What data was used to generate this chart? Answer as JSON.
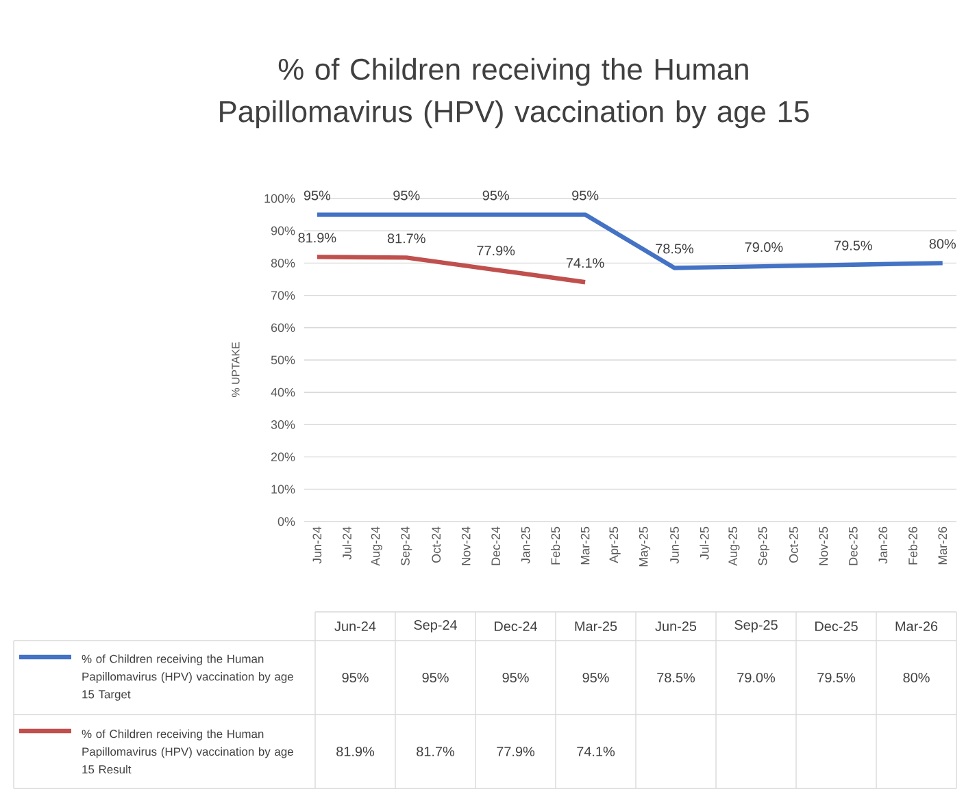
{
  "chart_data": {
    "type": "line",
    "title": "% of Children receiving the Human Papillomavirus (HPV) vaccination by age 15",
    "ylabel": "% UPTAKE",
    "series": [
      {
        "name": "% of Children receiving the Human Papillomavirus (HPV) vaccination by age 15 Target",
        "color": "#4472c4",
        "x": [
          "2024-06",
          "2024-09",
          "2024-12",
          "2025-03",
          "2025-06",
          "2025-09",
          "2025-12",
          "2026-03"
        ],
        "values": [
          95,
          95,
          95,
          95,
          78.5,
          79.0,
          79.5,
          80
        ],
        "value_labels": [
          "95%",
          "95%",
          "95%",
          "95%",
          "78.5%",
          "79.0%",
          "79.5%",
          "80%"
        ]
      },
      {
        "name": "% of Children receiving the Human Papillomavirus (HPV) vaccination by age 15 Result",
        "color": "#c0504d",
        "x": [
          "2024-06",
          "2024-09",
          "2024-12",
          "2025-03"
        ],
        "values": [
          81.9,
          81.7,
          77.9,
          74.1
        ],
        "value_labels": [
          "81.9%",
          "81.7%",
          "77.9%",
          "74.1%"
        ]
      }
    ],
    "xlim": [
      "2024-05-18",
      "2026-03-15"
    ],
    "xticks": [
      {
        "value": "2024-06",
        "label": "Jun-24"
      },
      {
        "value": "2024-07",
        "label": "Jul-24"
      },
      {
        "value": "2024-08",
        "label": "Aug-24"
      },
      {
        "value": "2024-09",
        "label": "Sep-24"
      },
      {
        "value": "2024-10",
        "label": "Oct-24"
      },
      {
        "value": "2024-11",
        "label": "Nov-24"
      },
      {
        "value": "2024-12",
        "label": "Dec-24"
      },
      {
        "value": "2025-01",
        "label": "Jan-25"
      },
      {
        "value": "2025-02",
        "label": "Feb-25"
      },
      {
        "value": "2025-03",
        "label": "Mar-25"
      },
      {
        "value": "2025-04",
        "label": "Apr-25"
      },
      {
        "value": "2025-05",
        "label": "May-25"
      },
      {
        "value": "2025-06",
        "label": "Jun-25"
      },
      {
        "value": "2025-07",
        "label": "Jul-25"
      },
      {
        "value": "2025-08",
        "label": "Aug-25"
      },
      {
        "value": "2025-09",
        "label": "Sep-25"
      },
      {
        "value": "2025-10",
        "label": "Oct-25"
      },
      {
        "value": "2025-11",
        "label": "Nov-25"
      },
      {
        "value": "2025-12",
        "label": "Dec-25"
      },
      {
        "value": "2026-01",
        "label": "Jan-26"
      },
      {
        "value": "2026-02",
        "label": "Feb-26"
      },
      {
        "value": "2026-03",
        "label": "Mar-26"
      }
    ],
    "ylim": [
      0,
      100
    ],
    "yticks": [
      {
        "value": 0,
        "label": "0%"
      },
      {
        "value": 10,
        "label": "10%"
      },
      {
        "value": 20,
        "label": "20%"
      },
      {
        "value": 30,
        "label": "30%"
      },
      {
        "value": 40,
        "label": "40%"
      },
      {
        "value": 50,
        "label": "50%"
      },
      {
        "value": 60,
        "label": "60%"
      },
      {
        "value": 70,
        "label": "70%"
      },
      {
        "value": 80,
        "label": "80%"
      },
      {
        "value": 90,
        "label": "90%"
      },
      {
        "value": 100,
        "label": "100%"
      }
    ],
    "grid": "y",
    "legend": "bottom",
    "marker": "none",
    "line_style": "solid"
  }
}
